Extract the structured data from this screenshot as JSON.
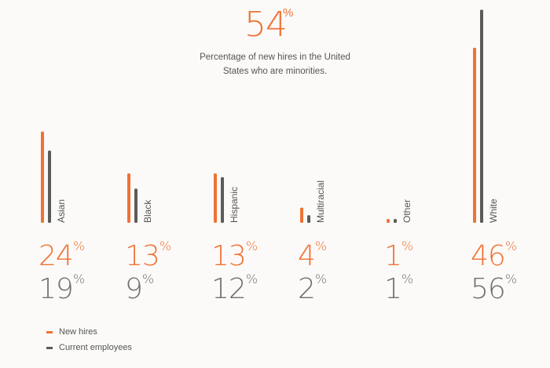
{
  "headline": {
    "value": "54",
    "unit": "%"
  },
  "subtitle": "Percentage of new hires in the United States who are minorities.",
  "colors": {
    "new_hires": "#f07234",
    "current": "#5b5b5b"
  },
  "legend": {
    "new_hires": "New hires",
    "current": "Current employees"
  },
  "chart_data": {
    "type": "bar",
    "categories": [
      "Asian",
      "Black",
      "Hispanic",
      "Multiracial",
      "Other",
      "White"
    ],
    "series": [
      {
        "name": "New hires",
        "values": [
          24,
          13,
          13,
          4,
          1,
          46
        ]
      },
      {
        "name": "Current employees",
        "values": [
          19,
          9,
          12,
          2,
          1,
          56
        ]
      }
    ],
    "value_suffix": "%"
  }
}
